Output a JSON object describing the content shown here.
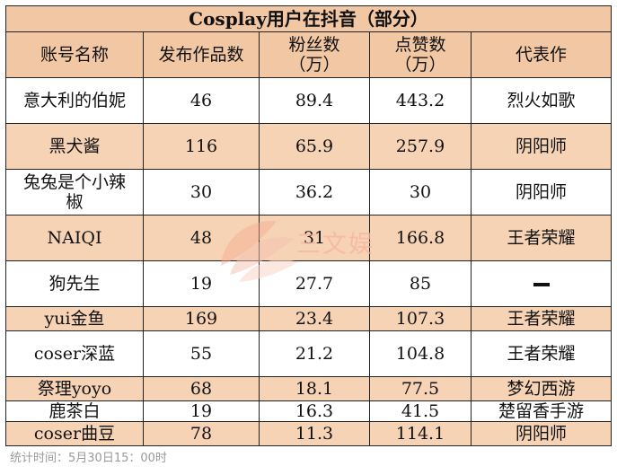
{
  "table": {
    "title": "Cosplay用户在抖音（部分）",
    "headers": [
      "账号名称",
      "发布作品数",
      "粉丝数\n（万）",
      "点赞数\n（万）",
      "代表作"
    ],
    "rows": [
      [
        "意大利的伯妮",
        "46",
        "89.4",
        "443.2",
        "烈火如歌"
      ],
      [
        "黑犬酱",
        "116",
        "65.9",
        "257.9",
        "阴阳师"
      ],
      [
        "兔兔是个小辣\n椒",
        "30",
        "36.2",
        "30",
        "阴阳师"
      ],
      [
        "NAIQI",
        "48",
        "31",
        "166.8",
        "王者荣耀"
      ],
      [
        "狗先生",
        "19",
        "27.7",
        "85",
        ""
      ],
      [
        "yui金鱼",
        "169",
        "23.4",
        "107.3",
        "王者荣耀"
      ],
      [
        "coser深蓝",
        "55",
        "21.2",
        "104.8",
        "王者荣耀"
      ],
      [
        "祭理yoyo",
        "68",
        "18.1",
        "77.5",
        "梦幻西游"
      ],
      [
        "鹿茶白",
        "19",
        "16.3",
        "41.5",
        "楚留香手游"
      ],
      [
        "coser曲豆",
        "78",
        "11.3",
        "114.1",
        "阴阳师"
      ]
    ]
  },
  "footer": "统计时间：5月30日15：00时",
  "watermark": "三文娱",
  "colors": {
    "shaded_row": "#f7d3b6",
    "header": "#f2c8a4",
    "watermark": "#f5b49f"
  }
}
